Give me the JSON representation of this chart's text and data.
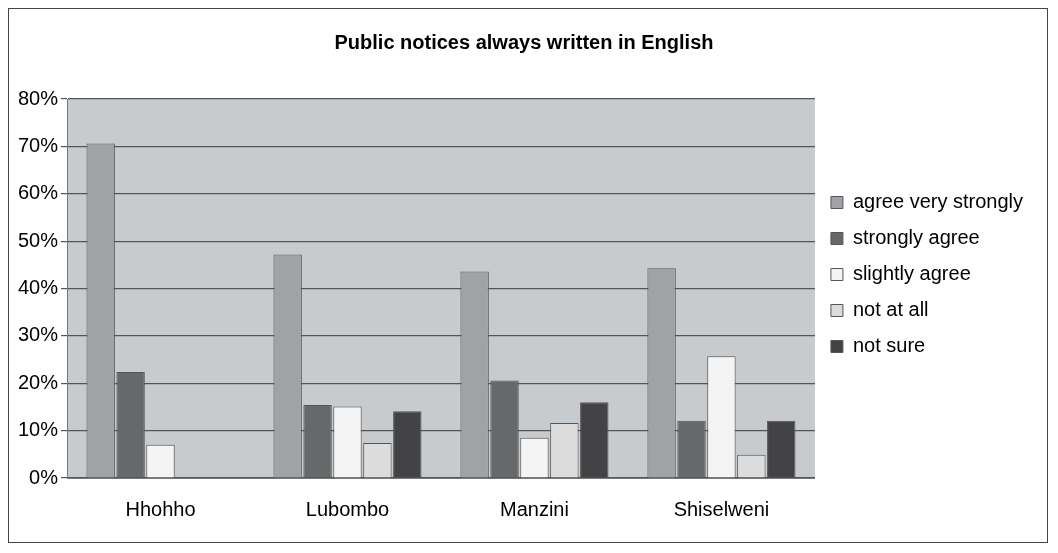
{
  "chart_data": {
    "type": "bar",
    "title": "Public notices always written in English",
    "categories": [
      "Hhohho",
      "Lubombo",
      "Manzini",
      "Shiselweni"
    ],
    "series": [
      {
        "name": "agree very strongly",
        "color": "#a0a2a5",
        "values": [
          70.6,
          47.2,
          43.6,
          44.3
        ]
      },
      {
        "name": "strongly agree",
        "color": "#66686a",
        "values": [
          22.4,
          15.4,
          20.6,
          12.1
        ]
      },
      {
        "name": "slightly agree",
        "color": "#f4f4f4",
        "values": [
          7.0,
          15.1,
          8.5,
          25.7
        ]
      },
      {
        "name": "not at all",
        "color": "#dcdcdc",
        "values": [
          0,
          7.4,
          11.6,
          4.9
        ]
      },
      {
        "name": "not sure",
        "color": "#434346",
        "values": [
          0,
          14.1,
          16.0,
          12.1
        ]
      }
    ],
    "ylim": [
      0,
      80
    ],
    "yticks": [
      {
        "value": 0,
        "label": "0%"
      },
      {
        "value": 10,
        "label": "10%"
      },
      {
        "value": 20,
        "label": "20%"
      },
      {
        "value": 30,
        "label": "30%"
      },
      {
        "value": 40,
        "label": "40%"
      },
      {
        "value": 50,
        "label": "50%"
      },
      {
        "value": 60,
        "label": "60%"
      },
      {
        "value": 70,
        "label": "70%"
      },
      {
        "value": 80,
        "label": "80%"
      }
    ],
    "grid": "y",
    "legend": "right"
  }
}
